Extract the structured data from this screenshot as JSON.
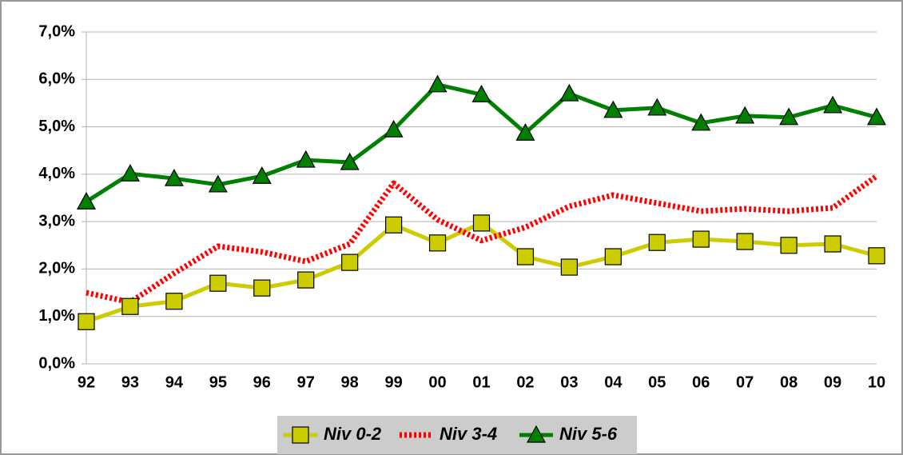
{
  "chart_data": {
    "type": "line",
    "categories": [
      "92",
      "93",
      "94",
      "95",
      "96",
      "97",
      "98",
      "99",
      "00",
      "01",
      "02",
      "03",
      "04",
      "05",
      "06",
      "07",
      "08",
      "09",
      "10"
    ],
    "series": [
      {
        "name": "Niv 0-2",
        "color": "#cccc00",
        "marker": "square",
        "line_style": "solid",
        "values": [
          0.89,
          1.21,
          1.32,
          1.7,
          1.6,
          1.77,
          2.14,
          2.93,
          2.55,
          2.97,
          2.26,
          2.04,
          2.26,
          2.56,
          2.63,
          2.58,
          2.5,
          2.53,
          2.28
        ]
      },
      {
        "name": "Niv 3-4",
        "color": "#ff0000",
        "marker": "none",
        "line_style": "dotted",
        "values": [
          1.5,
          1.3,
          1.91,
          2.48,
          2.36,
          2.16,
          2.53,
          3.81,
          3.04,
          2.6,
          2.88,
          3.32,
          3.56,
          3.39,
          3.22,
          3.27,
          3.22,
          3.29,
          3.96
        ]
      },
      {
        "name": "Niv 5-6",
        "color": "#008000",
        "marker": "triangle",
        "line_style": "solid",
        "values": [
          3.42,
          4.01,
          3.91,
          3.78,
          3.96,
          4.3,
          4.25,
          4.94,
          5.89,
          5.68,
          4.87,
          5.7,
          5.35,
          5.4,
          5.08,
          5.23,
          5.2,
          5.45,
          5.2
        ]
      }
    ],
    "ylim": [
      0,
      7
    ],
    "yticks": [
      {
        "value": 0,
        "label": "0,0%"
      },
      {
        "value": 1,
        "label": "1,0%"
      },
      {
        "value": 2,
        "label": "2,0%"
      },
      {
        "value": 3,
        "label": "3,0%"
      },
      {
        "value": 4,
        "label": "4,0%"
      },
      {
        "value": 5,
        "label": "5,0%"
      },
      {
        "value": 6,
        "label": "6,0%"
      },
      {
        "value": 7,
        "label": "7,0%"
      }
    ],
    "grid": true,
    "legend": "bottom"
  }
}
